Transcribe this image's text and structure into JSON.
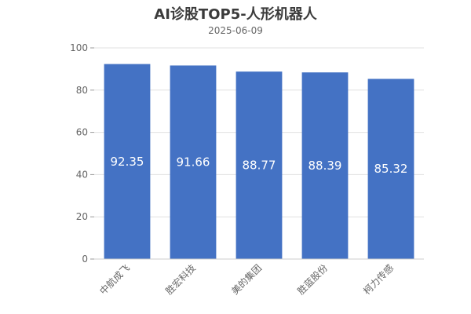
{
  "chart_data": {
    "type": "bar",
    "title": "AI诊股TOP5-人形机器人",
    "subtitle": "2025-06-09",
    "categories": [
      "中航成飞",
      "胜宏科技",
      "美的集团",
      "胜蓝股份",
      "柯力传感"
    ],
    "values": [
      92.35,
      91.66,
      88.77,
      88.39,
      85.32
    ],
    "value_labels": [
      "92.35",
      "91.66",
      "88.77",
      "88.39",
      "85.32"
    ],
    "xlabel": "",
    "ylabel": "",
    "ylim": [
      0,
      100
    ],
    "yticks": [
      "0",
      "20",
      "40",
      "60",
      "80",
      "100"
    ],
    "grid": true,
    "legend": "none",
    "bar_color": "#4472c4"
  }
}
